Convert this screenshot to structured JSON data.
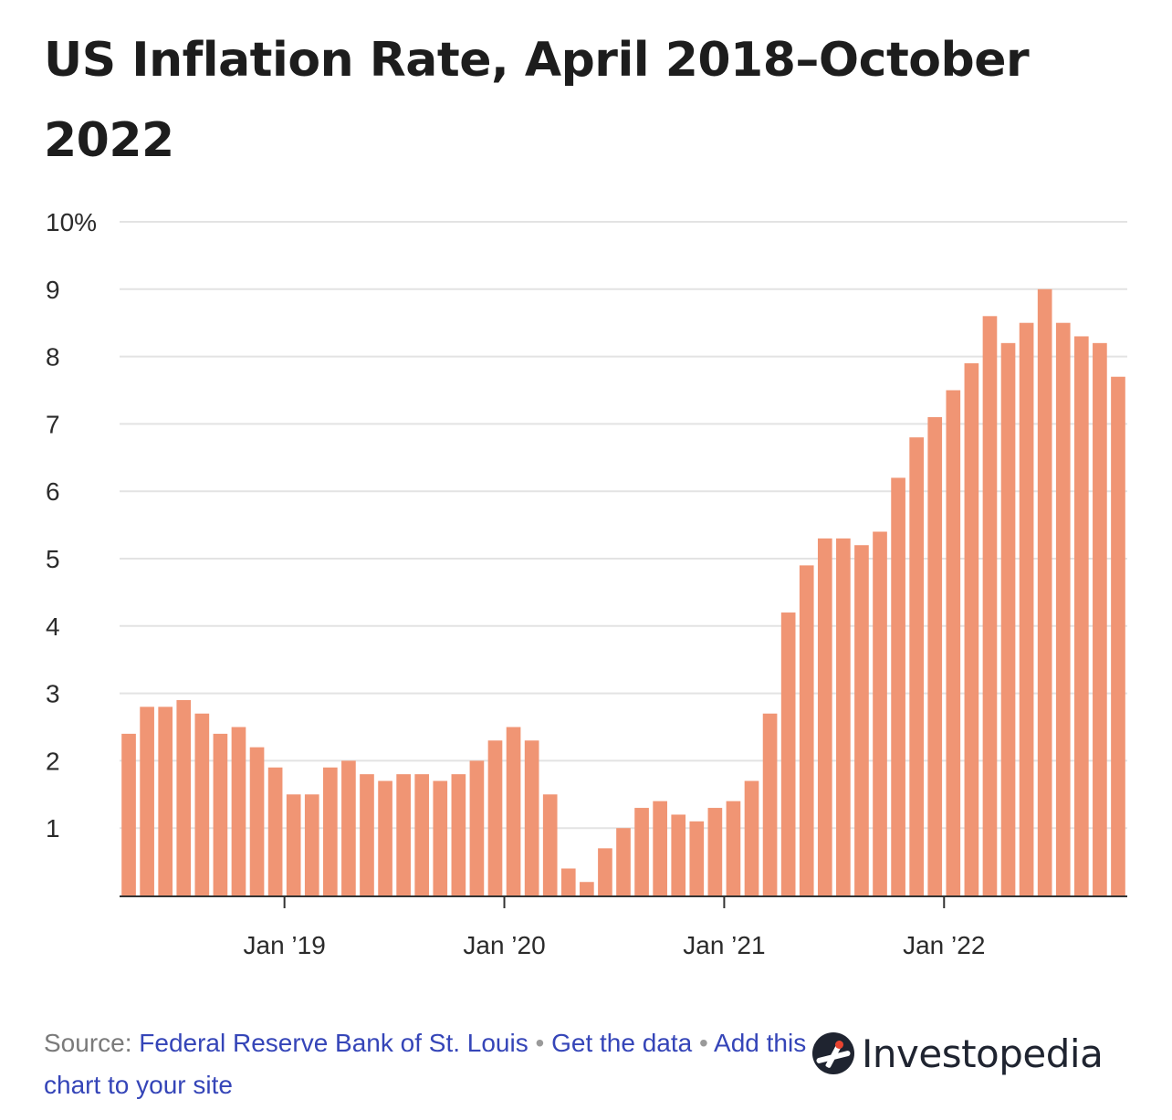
{
  "chart_data": {
    "type": "bar",
    "title": "US Inflation Rate, April 2018–October 2022",
    "x": [
      "2018-04",
      "2018-05",
      "2018-06",
      "2018-07",
      "2018-08",
      "2018-09",
      "2018-10",
      "2018-11",
      "2018-12",
      "2019-01",
      "2019-02",
      "2019-03",
      "2019-04",
      "2019-05",
      "2019-06",
      "2019-07",
      "2019-08",
      "2019-09",
      "2019-10",
      "2019-11",
      "2019-12",
      "2020-01",
      "2020-02",
      "2020-03",
      "2020-04",
      "2020-05",
      "2020-06",
      "2020-07",
      "2020-08",
      "2020-09",
      "2020-10",
      "2020-11",
      "2020-12",
      "2021-01",
      "2021-02",
      "2021-03",
      "2021-04",
      "2021-05",
      "2021-06",
      "2021-07",
      "2021-08",
      "2021-09",
      "2021-10",
      "2021-11",
      "2021-12",
      "2022-01",
      "2022-02",
      "2022-03",
      "2022-04",
      "2022-05",
      "2022-06",
      "2022-07",
      "2022-08",
      "2022-09",
      "2022-10"
    ],
    "values": [
      2.4,
      2.8,
      2.8,
      2.9,
      2.7,
      2.4,
      2.5,
      2.2,
      1.9,
      1.5,
      1.5,
      1.9,
      2.0,
      1.8,
      1.7,
      1.8,
      1.8,
      1.7,
      1.8,
      2.0,
      2.3,
      2.5,
      2.3,
      1.5,
      0.4,
      0.2,
      0.7,
      1.0,
      1.3,
      1.4,
      1.2,
      1.1,
      1.3,
      1.4,
      1.7,
      2.7,
      4.2,
      4.9,
      5.3,
      5.3,
      5.2,
      5.4,
      6.2,
      6.8,
      7.1,
      7.5,
      7.9,
      8.6,
      8.2,
      8.5,
      9.0,
      8.5,
      8.3,
      8.2,
      7.7
    ],
    "ylim": [
      0,
      10
    ],
    "y_ticks": [
      {
        "value": 1,
        "label": "1"
      },
      {
        "value": 2,
        "label": "2"
      },
      {
        "value": 3,
        "label": "3"
      },
      {
        "value": 4,
        "label": "4"
      },
      {
        "value": 5,
        "label": "5"
      },
      {
        "value": 6,
        "label": "6"
      },
      {
        "value": 7,
        "label": "7"
      },
      {
        "value": 8,
        "label": "8"
      },
      {
        "value": 9,
        "label": "9"
      },
      {
        "value": 10,
        "label": "10%"
      }
    ],
    "x_ticks": [
      {
        "at": "2019-01",
        "label": "Jan ’19"
      },
      {
        "at": "2020-01",
        "label": "Jan ’20"
      },
      {
        "at": "2021-01",
        "label": "Jan ’21"
      },
      {
        "at": "2022-01",
        "label": "Jan ’22"
      }
    ],
    "bar_color": "#f09574",
    "grid": true,
    "xlabel": "",
    "ylabel": ""
  },
  "footer": {
    "source_prefix": "Source:",
    "source_link": "Federal Reserve Bank of St. Louis",
    "separator": "•",
    "get_data": "Get the data",
    "add_chart": "Add this chart to your site"
  },
  "logo": {
    "text": "Investopedia",
    "icon": "investopedia-logo-icon"
  }
}
